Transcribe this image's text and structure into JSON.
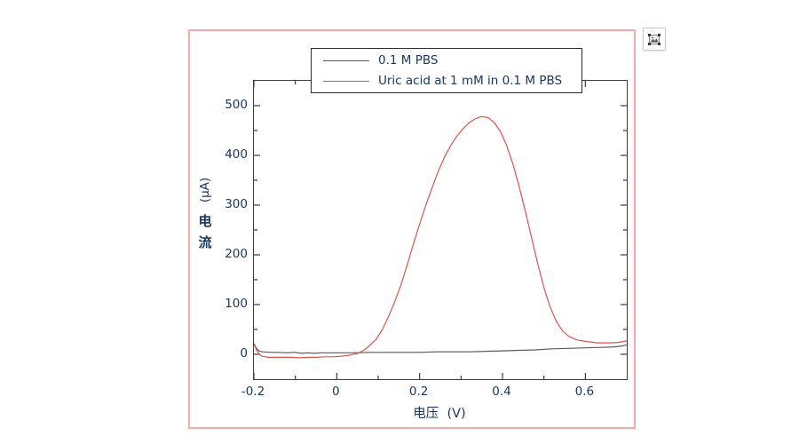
{
  "page": {
    "background": "#ffffff"
  },
  "figure": {
    "border_color": "#f2aba6",
    "selection_button": {
      "icon": "selected-image-icon"
    }
  },
  "chart_data": {
    "type": "line",
    "title": "",
    "xlabel": "电压  (V)",
    "ylabel": "电流 (µA)",
    "ylabel_display": {
      "unit": "(µA)",
      "char1": "电",
      "char2": "流"
    },
    "xlim": [
      -0.2,
      0.7
    ],
    "ylim": [
      -50,
      550
    ],
    "grid": false,
    "frame_color": "#3c3c3c",
    "tick_label_color": "#17365d",
    "x_major_ticks": [
      -0.2,
      0,
      0.2,
      0.4,
      0.6
    ],
    "x_tick_labels": [
      "-0.2",
      "0",
      "0.2",
      "0.4",
      "0.6"
    ],
    "x_minor_ticks": [
      -0.1,
      0.1,
      0.3,
      0.5
    ],
    "y_major_ticks": [
      0,
      100,
      200,
      300,
      400,
      500
    ],
    "y_tick_labels": [
      "0",
      "100",
      "200",
      "300",
      "400",
      "500"
    ],
    "y_minor_ticks": [
      50,
      150,
      250,
      350,
      450
    ],
    "legend": {
      "position": "top-center",
      "border": true
    },
    "series": [
      {
        "name": "0.1 M PBS",
        "color": "#5a5a5a",
        "width": 1.2,
        "points": [
          [
            -0.2,
            22
          ],
          [
            -0.194,
            12
          ],
          [
            -0.188,
            7
          ],
          [
            -0.18,
            5
          ],
          [
            -0.16,
            4
          ],
          [
            -0.14,
            4
          ],
          [
            -0.12,
            3
          ],
          [
            -0.1,
            4
          ],
          [
            -0.085,
            2
          ],
          [
            -0.07,
            3
          ],
          [
            -0.055,
            2
          ],
          [
            -0.04,
            3
          ],
          [
            -0.02,
            3
          ],
          [
            0.0,
            3
          ],
          [
            0.04,
            3
          ],
          [
            0.08,
            4
          ],
          [
            0.12,
            4
          ],
          [
            0.16,
            4
          ],
          [
            0.2,
            4
          ],
          [
            0.24,
            5
          ],
          [
            0.28,
            5
          ],
          [
            0.32,
            5
          ],
          [
            0.36,
            6
          ],
          [
            0.4,
            7
          ],
          [
            0.44,
            8
          ],
          [
            0.48,
            9
          ],
          [
            0.52,
            11
          ],
          [
            0.56,
            12
          ],
          [
            0.6,
            13
          ],
          [
            0.64,
            14
          ],
          [
            0.67,
            15
          ],
          [
            0.69,
            17
          ],
          [
            0.7,
            19
          ]
        ]
      },
      {
        "name": "Uric acid at 1 mM in 0.1 M PBS",
        "color": "#d5564c",
        "width": 1.2,
        "points": [
          [
            -0.2,
            20
          ],
          [
            -0.193,
            8
          ],
          [
            -0.187,
            0
          ],
          [
            -0.18,
            -4
          ],
          [
            -0.165,
            -6
          ],
          [
            -0.15,
            -6
          ],
          [
            -0.13,
            -6
          ],
          [
            -0.11,
            -6
          ],
          [
            -0.09,
            -7
          ],
          [
            -0.07,
            -6
          ],
          [
            -0.05,
            -6
          ],
          [
            -0.03,
            -5
          ],
          [
            -0.01,
            -5
          ],
          [
            0.01,
            -4
          ],
          [
            0.03,
            -2
          ],
          [
            0.05,
            2
          ],
          [
            0.065,
            8
          ],
          [
            0.08,
            18
          ],
          [
            0.095,
            30
          ],
          [
            0.11,
            50
          ],
          [
            0.125,
            76
          ],
          [
            0.14,
            106
          ],
          [
            0.155,
            140
          ],
          [
            0.17,
            180
          ],
          [
            0.185,
            222
          ],
          [
            0.2,
            262
          ],
          [
            0.215,
            300
          ],
          [
            0.23,
            335
          ],
          [
            0.245,
            368
          ],
          [
            0.26,
            397
          ],
          [
            0.275,
            420
          ],
          [
            0.29,
            439
          ],
          [
            0.305,
            454
          ],
          [
            0.32,
            466
          ],
          [
            0.335,
            474
          ],
          [
            0.35,
            478
          ],
          [
            0.365,
            476
          ],
          [
            0.38,
            466
          ],
          [
            0.395,
            448
          ],
          [
            0.41,
            420
          ],
          [
            0.425,
            383
          ],
          [
            0.44,
            338
          ],
          [
            0.455,
            288
          ],
          [
            0.47,
            235
          ],
          [
            0.485,
            182
          ],
          [
            0.5,
            134
          ],
          [
            0.515,
            95
          ],
          [
            0.53,
            66
          ],
          [
            0.545,
            47
          ],
          [
            0.56,
            36
          ],
          [
            0.58,
            29
          ],
          [
            0.6,
            26
          ],
          [
            0.63,
            23
          ],
          [
            0.66,
            23
          ],
          [
            0.68,
            24
          ],
          [
            0.7,
            27
          ]
        ]
      }
    ],
    "annotations": {
      "peak_value_uA": 478,
      "peak_voltage_V": 0.35
    }
  }
}
